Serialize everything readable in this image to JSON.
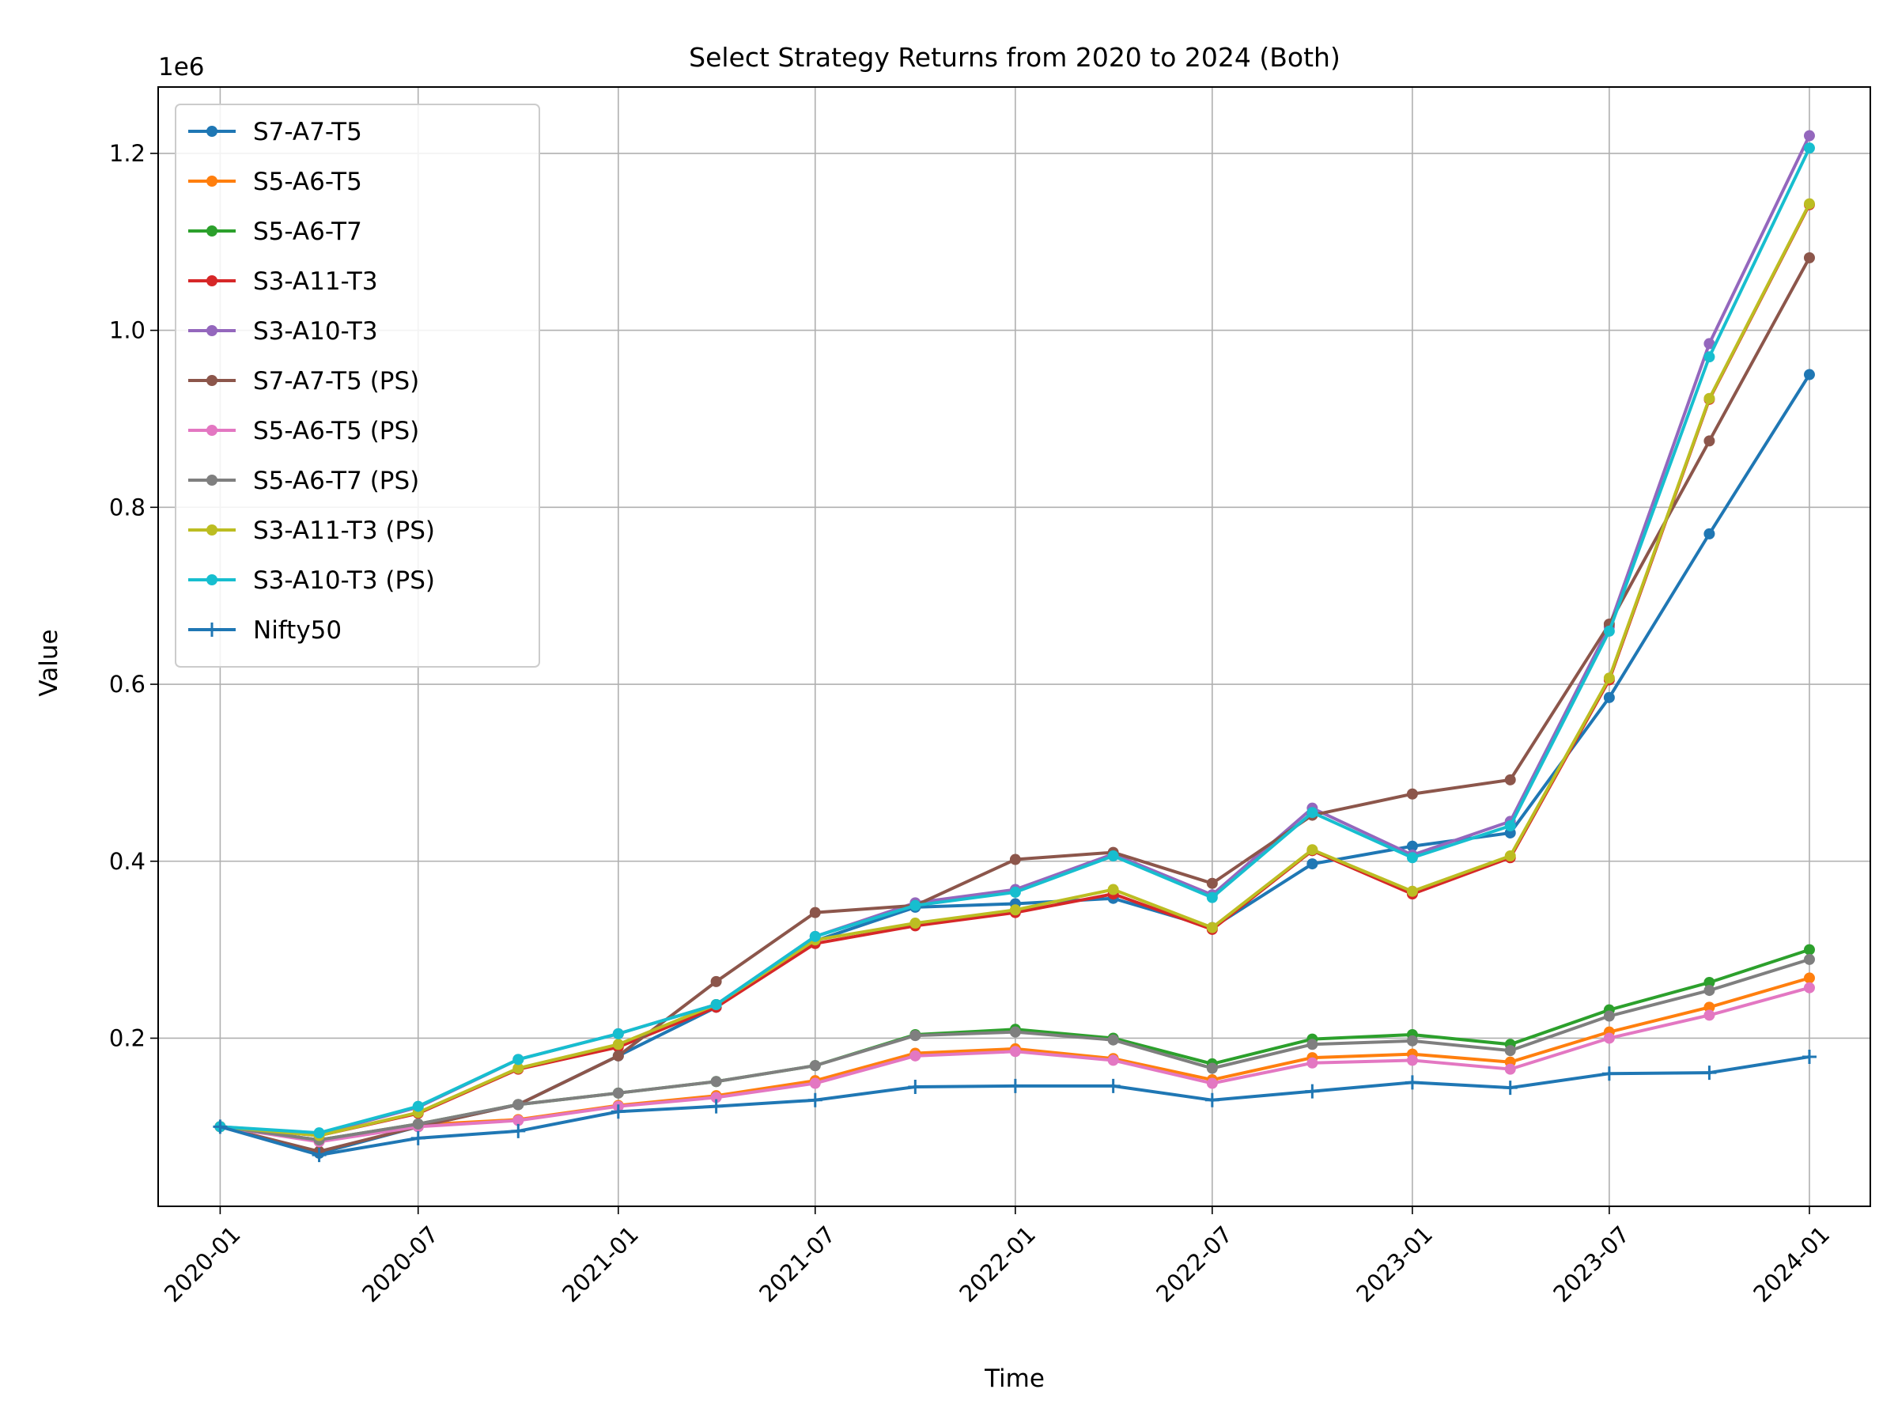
{
  "chart_data": {
    "type": "line",
    "title": "Select Strategy Returns from 2020 to 2024 (Both)",
    "xlabel": "Time",
    "ylabel": "Value",
    "y_offset_label": "1e6",
    "x": [
      "2020-01-01",
      "2020-04-01",
      "2020-07-01",
      "2020-10-01",
      "2021-01-01",
      "2021-04-01",
      "2021-07-01",
      "2021-10-01",
      "2022-01-01",
      "2022-04-01",
      "2022-07-01",
      "2022-10-01",
      "2023-01-01",
      "2023-04-01",
      "2023-07-01",
      "2023-10-01",
      "2024-01-01"
    ],
    "x_ticks": [
      "2020-01",
      "2020-07",
      "2021-01",
      "2021-07",
      "2022-01",
      "2022-07",
      "2023-01",
      "2023-07",
      "2024-01"
    ],
    "y_ticks": [
      "0.2",
      "0.4",
      "0.6",
      "0.8",
      "1.0",
      "1.2"
    ],
    "ylim": [
      10000,
      1275000
    ],
    "xlim": [
      "2019-11-05",
      "2024-02-26"
    ],
    "grid": true,
    "legend_position": "upper-left",
    "series": [
      {
        "name": "S7-A7-T5",
        "color": "#1f77b4",
        "marker": "dot",
        "values": [
          100000,
          70000,
          100000,
          125000,
          180000,
          235000,
          310000,
          348000,
          352000,
          358000,
          325000,
          397000,
          417000,
          432000,
          585000,
          770000,
          950000
        ]
      },
      {
        "name": "S5-A6-T5",
        "color": "#ff7f0e",
        "marker": "dot",
        "values": [
          100000,
          84000,
          102000,
          108000,
          124000,
          135000,
          152000,
          183000,
          188000,
          177000,
          153000,
          178000,
          182000,
          173000,
          207000,
          235000,
          268000
        ]
      },
      {
        "name": "S5-A6-T7",
        "color": "#2ca02c",
        "marker": "dot",
        "values": [
          100000,
          85000,
          103000,
          125000,
          138000,
          151000,
          169000,
          204000,
          210000,
          200000,
          171000,
          199000,
          204000,
          193000,
          232000,
          263000,
          300000
        ]
      },
      {
        "name": "S3-A11-T3",
        "color": "#d62728",
        "marker": "dot",
        "values": [
          100000,
          90000,
          115000,
          165000,
          190000,
          235000,
          307000,
          327000,
          342000,
          363000,
          323000,
          412000,
          363000,
          404000,
          605000,
          922000,
          1142000
        ]
      },
      {
        "name": "S3-A10-T3",
        "color": "#9467bd",
        "marker": "dot",
        "values": [
          100000,
          92000,
          122000,
          176000,
          205000,
          238000,
          315000,
          353000,
          368000,
          408000,
          362000,
          460000,
          407000,
          445000,
          665000,
          985000,
          1220000
        ]
      },
      {
        "name": "S7-A7-T5 (PS)",
        "color": "#8c564b",
        "marker": "dot",
        "values": [
          100000,
          72000,
          100000,
          125000,
          180000,
          264000,
          342000,
          350000,
          402000,
          410000,
          375000,
          452000,
          476000,
          492000,
          668000,
          875000,
          1082000
        ]
      },
      {
        "name": "S5-A6-T5 (PS)",
        "color": "#e377c2",
        "marker": "dot",
        "values": [
          100000,
          83000,
          100000,
          107000,
          123000,
          133000,
          149000,
          180000,
          185000,
          175000,
          149000,
          172000,
          175000,
          165000,
          200000,
          226000,
          257000
        ]
      },
      {
        "name": "S5-A6-T7 (PS)",
        "color": "#7f7f7f",
        "marker": "dot",
        "values": [
          100000,
          85000,
          103000,
          125000,
          138000,
          151000,
          169000,
          203000,
          207000,
          198000,
          166000,
          193000,
          197000,
          186000,
          225000,
          254000,
          289000
        ]
      },
      {
        "name": "S3-A11-T3 (PS)",
        "color": "#bcbd22",
        "marker": "dot",
        "values": [
          100000,
          90000,
          116000,
          166000,
          193000,
          238000,
          311000,
          330000,
          345000,
          368000,
          325000,
          413000,
          366000,
          406000,
          607000,
          923000,
          1143000
        ]
      },
      {
        "name": "S3-A10-T3 (PS)",
        "color": "#17becf",
        "marker": "dot",
        "values": [
          100000,
          93000,
          123000,
          176000,
          205000,
          238000,
          315000,
          350000,
          365000,
          406000,
          359000,
          455000,
          404000,
          440000,
          660000,
          970000,
          1206000
        ]
      },
      {
        "name": "Nifty50",
        "color": "#1f77b4",
        "marker": "plus",
        "values": [
          100000,
          68000,
          87000,
          95000,
          117000,
          123000,
          130000,
          145000,
          146000,
          146000,
          130000,
          140000,
          150000,
          144000,
          160000,
          161000,
          179000
        ]
      }
    ]
  }
}
